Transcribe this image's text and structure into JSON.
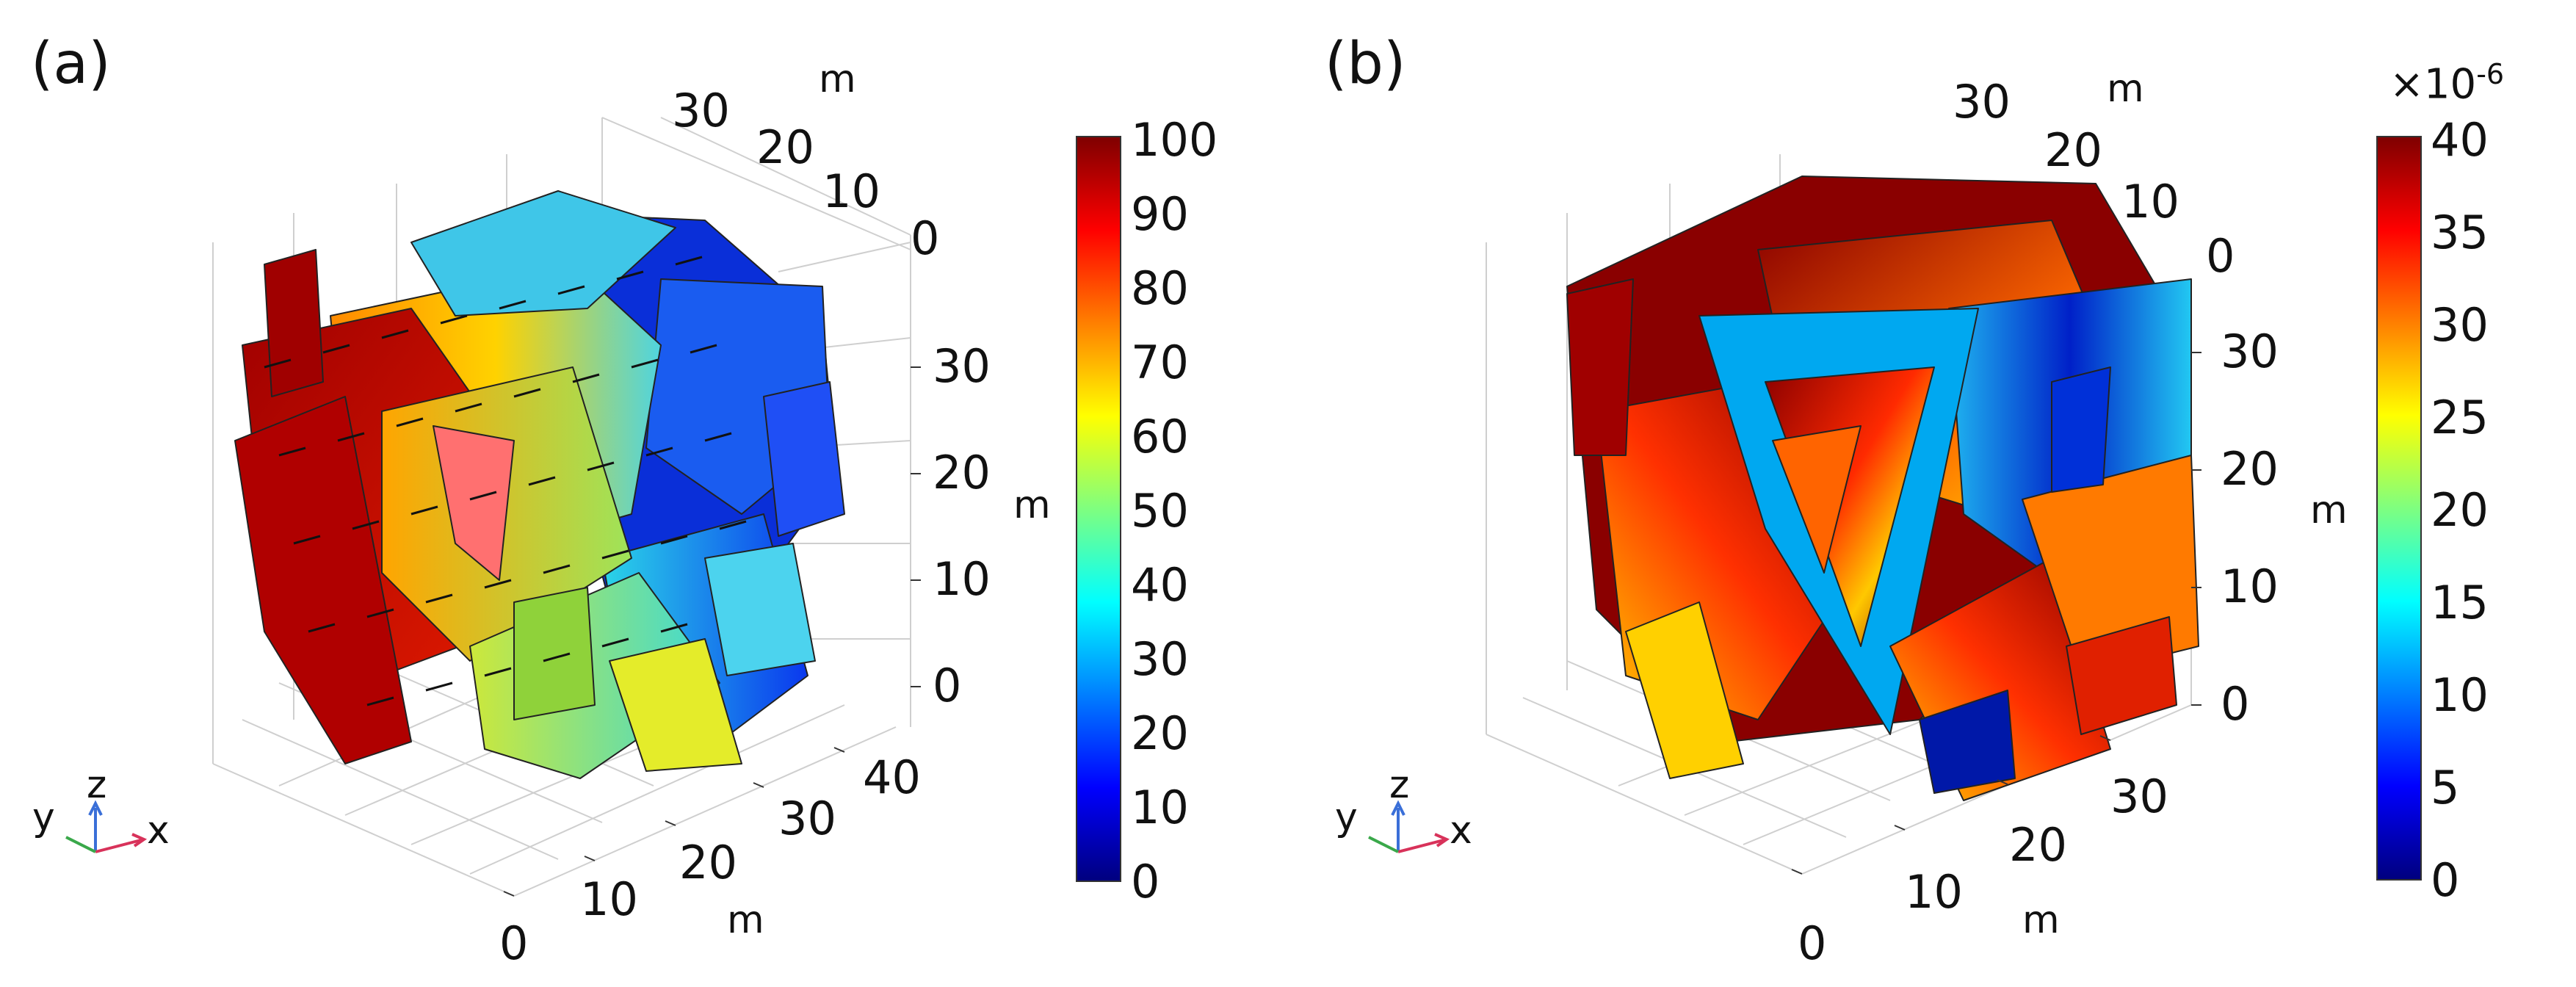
{
  "panel_a": {
    "label": "(a)",
    "y_axis_ticks": [
      "30",
      "20",
      "10",
      "0"
    ],
    "y_axis_unit": "m",
    "z_axis_ticks": [
      "30",
      "20",
      "10",
      "0"
    ],
    "z_axis_unit": "m",
    "x_axis_ticks": [
      "0",
      "10",
      "20",
      "30",
      "40"
    ],
    "x_axis_unit": "m",
    "colorbar": {
      "ticks": [
        "100",
        "90",
        "80",
        "70",
        "60",
        "50",
        "40",
        "30",
        "20",
        "10",
        "0"
      ],
      "min": 0,
      "max": 100
    },
    "triad": {
      "x": "x",
      "y": "y",
      "z": "z"
    }
  },
  "panel_b": {
    "label": "(b)",
    "y_axis_ticks": [
      "30",
      "20",
      "10",
      "0"
    ],
    "y_axis_unit": "m",
    "z_axis_ticks": [
      "30",
      "20",
      "10",
      "0"
    ],
    "z_axis_unit": "m",
    "x_axis_ticks": [
      "0",
      "10",
      "20",
      "30"
    ],
    "x_axis_unit": "m",
    "colorbar": {
      "exponent_base": "×10",
      "exponent_power": "-6",
      "ticks": [
        "40",
        "35",
        "30",
        "25",
        "20",
        "15",
        "10",
        "5",
        "0"
      ],
      "min": 0,
      "max": 40
    },
    "triad": {
      "x": "x",
      "y": "y",
      "z": "z"
    }
  },
  "colors": {
    "jet": [
      "#00007f",
      "#0000ff",
      "#007fff",
      "#00ffff",
      "#7fff7f",
      "#ffff00",
      "#ff7f00",
      "#ff0000",
      "#7f0000"
    ]
  }
}
